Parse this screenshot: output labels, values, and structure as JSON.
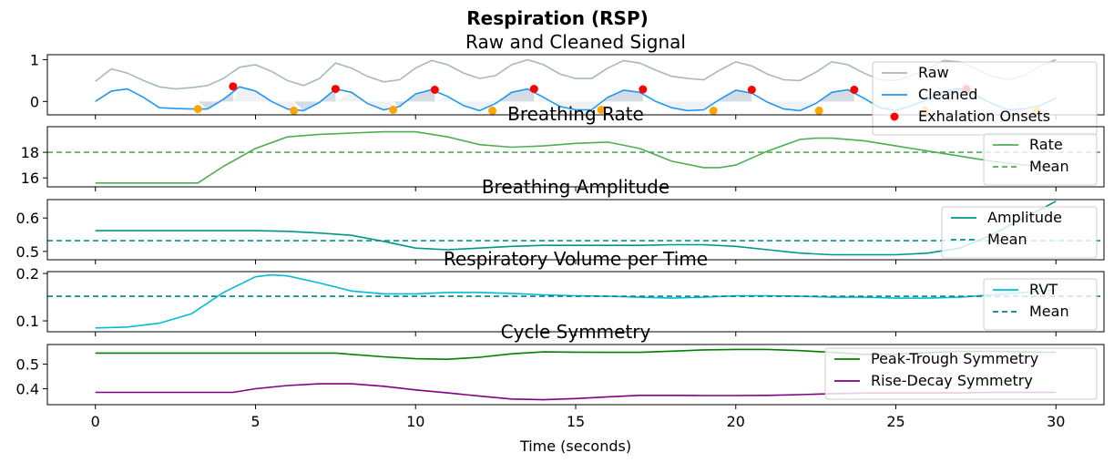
{
  "chart_data": {
    "type": "line",
    "title": "Respiration (RSP)",
    "xlabel": "Time (seconds)",
    "xlim": [
      -1.5,
      31.5
    ],
    "xticks": [
      0,
      5,
      10,
      15,
      20,
      25,
      30
    ],
    "panels": [
      {
        "id": "signal",
        "title": "Raw and Cleaned Signal",
        "ylim": [
          -0.32,
          1.12
        ],
        "yticks": [
          0,
          1
        ],
        "series": [
          {
            "name": "Raw",
            "color": "#a6b8c2",
            "x": [
              0,
              0.5,
              1,
              1.5,
              2,
              2.5,
              3,
              3.5,
              4,
              4.5,
              5,
              5.5,
              6,
              6.5,
              7,
              7.5,
              8,
              8.5,
              9,
              9.5,
              10,
              10.5,
              11,
              11.5,
              12,
              12.5,
              13,
              13.5,
              14,
              14.5,
              15,
              15.5,
              16,
              16.5,
              17,
              17.5,
              18,
              18.5,
              19,
              19.5,
              20,
              20.5,
              21,
              21.5,
              22,
              22.5,
              23,
              23.5,
              24,
              24.5,
              25,
              25.5,
              26,
              26.5,
              27,
              27.5,
              28,
              28.5,
              29,
              29.5,
              30
            ],
            "y": [
              0.48,
              0.78,
              0.68,
              0.5,
              0.35,
              0.3,
              0.33,
              0.38,
              0.55,
              0.82,
              0.88,
              0.72,
              0.5,
              0.38,
              0.55,
              0.92,
              0.8,
              0.6,
              0.47,
              0.52,
              0.8,
              0.98,
              0.88,
              0.68,
              0.55,
              0.62,
              0.88,
              1.0,
              0.88,
              0.66,
              0.55,
              0.55,
              0.8,
              0.98,
              0.92,
              0.75,
              0.6,
              0.55,
              0.52,
              0.75,
              0.95,
              0.85,
              0.65,
              0.52,
              0.5,
              0.7,
              0.95,
              0.88,
              0.68,
              0.52,
              0.5,
              0.62,
              0.78,
              0.98,
              0.95,
              0.78,
              0.6,
              0.52,
              0.62,
              0.85,
              1.0
            ]
          },
          {
            "name": "Cleaned",
            "color": "#2196f3",
            "x": [
              0,
              0.5,
              1,
              1.5,
              2,
              2.5,
              3,
              3.5,
              4,
              4.5,
              5,
              5.5,
              6,
              6.5,
              7,
              7.5,
              8,
              8.5,
              9,
              9.5,
              10,
              10.5,
              11,
              11.5,
              12,
              12.5,
              13,
              13.5,
              14,
              14.5,
              15,
              15.5,
              16,
              16.5,
              17,
              17.5,
              18,
              18.5,
              19,
              19.5,
              20,
              20.5,
              21,
              21.5,
              22,
              22.5,
              23,
              23.5,
              24,
              24.5,
              25,
              25.5,
              26,
              26.5,
              27,
              27.5,
              28,
              28.5,
              29,
              29.5,
              30
            ],
            "y": [
              0.0,
              0.25,
              0.3,
              0.1,
              -0.15,
              -0.17,
              -0.18,
              -0.18,
              0.05,
              0.35,
              0.25,
              0.0,
              -0.18,
              -0.22,
              -0.02,
              0.3,
              0.22,
              -0.05,
              -0.2,
              -0.12,
              0.18,
              0.28,
              0.12,
              -0.1,
              -0.22,
              -0.05,
              0.22,
              0.3,
              0.1,
              -0.12,
              -0.2,
              -0.2,
              0.1,
              0.27,
              0.22,
              0.0,
              -0.15,
              -0.22,
              -0.2,
              0.05,
              0.27,
              0.2,
              -0.02,
              -0.18,
              -0.22,
              -0.05,
              0.22,
              0.28,
              0.08,
              -0.15,
              -0.22,
              -0.1,
              0.05,
              0.25,
              0.3,
              0.15,
              -0.05,
              -0.2,
              -0.18,
              -0.1,
              0.08
            ]
          }
        ],
        "peaks": {
          "x": [
            4.3,
            7.5,
            10.6,
            13.7,
            17.1,
            20.5,
            23.7,
            27.2
          ],
          "y": [
            0.36,
            0.3,
            0.28,
            0.3,
            0.29,
            0.28,
            0.28,
            0.3
          ],
          "color": "#ff0000"
        },
        "troughs": {
          "x": [
            3.2,
            6.2,
            9.3,
            12.4,
            15.8,
            19.3,
            22.6,
            25.9,
            29.4
          ],
          "y": [
            -0.18,
            -0.22,
            -0.2,
            -0.22,
            -0.2,
            -0.22,
            -0.22,
            -0.22,
            -0.21
          ],
          "color": "#ffa500"
        },
        "legend": {
          "position": "upper right",
          "entries": [
            "Raw",
            "Cleaned",
            "Exhalation Onsets"
          ]
        }
      },
      {
        "id": "rate",
        "title": "Breathing Rate",
        "ylim": [
          15.3,
          20.0
        ],
        "yticks": [
          16,
          18
        ],
        "series": [
          {
            "name": "Rate",
            "color": "#4caf50",
            "x": [
              0,
              1,
              2,
              3,
              3.2,
              4,
              5,
              6,
              7,
              8,
              9,
              10,
              11,
              12,
              13,
              14,
              15,
              16,
              17,
              18,
              19,
              19.5,
              20,
              21,
              22,
              22.5,
              23,
              24,
              25,
              26,
              27,
              28,
              29,
              30
            ],
            "y": [
              15.6,
              15.6,
              15.6,
              15.6,
              15.6,
              16.9,
              18.3,
              19.2,
              19.4,
              19.5,
              19.6,
              19.6,
              19.2,
              18.6,
              18.4,
              18.5,
              18.7,
              18.8,
              18.3,
              17.3,
              16.8,
              16.8,
              17.0,
              18.1,
              19.0,
              19.1,
              19.1,
              18.9,
              18.5,
              18.1,
              17.7,
              17.3,
              17.0,
              16.8
            ]
          },
          {
            "name": "Mean",
            "color": "#4caf50",
            "dashed": true,
            "value": 18.0
          }
        ],
        "legend": {
          "position": "upper right",
          "entries": [
            "Rate",
            "Mean"
          ]
        }
      },
      {
        "id": "amplitude",
        "title": "Breathing Amplitude",
        "ylim": [
          0.475,
          0.655
        ],
        "yticks": [
          0.5,
          0.6
        ],
        "series": [
          {
            "name": "Amplitude",
            "color": "#009688",
            "x": [
              0,
              1,
              2,
              3,
              4,
              5,
              6,
              7,
              8,
              9,
              10,
              11,
              12,
              13,
              14,
              15,
              16,
              17,
              18,
              19,
              20,
              21,
              22,
              23,
              24,
              25,
              26,
              27,
              28,
              29,
              30
            ],
            "y": [
              0.562,
              0.562,
              0.562,
              0.562,
              0.562,
              0.562,
              0.56,
              0.555,
              0.548,
              0.53,
              0.51,
              0.505,
              0.51,
              0.515,
              0.518,
              0.518,
              0.518,
              0.518,
              0.52,
              0.52,
              0.515,
              0.505,
              0.495,
              0.49,
              0.49,
              0.49,
              0.495,
              0.51,
              0.55,
              0.6,
              0.65
            ]
          },
          {
            "name": "Mean",
            "color": "#009688",
            "dashed": true,
            "value": 0.532
          }
        ],
        "legend": {
          "position": "upper right",
          "entries": [
            "Amplitude",
            "Mean"
          ]
        }
      },
      {
        "id": "rvt",
        "title": "Respiratory Volume per Time",
        "ylim": [
          0.077,
          0.204
        ],
        "yticks": [
          0.1,
          0.2
        ],
        "series": [
          {
            "name": "RVT",
            "color": "#00bcd4",
            "x": [
              0,
              1,
              2,
              3,
              4,
              5,
              5.5,
              6,
              7,
              8,
              9,
              10,
              11,
              12,
              13,
              14,
              15,
              16,
              17,
              18,
              19,
              20,
              21,
              22,
              23,
              24,
              25,
              26,
              27,
              28,
              29,
              30
            ],
            "y": [
              0.085,
              0.087,
              0.095,
              0.115,
              0.16,
              0.193,
              0.197,
              0.195,
              0.18,
              0.163,
              0.157,
              0.157,
              0.16,
              0.16,
              0.158,
              0.155,
              0.153,
              0.152,
              0.15,
              0.148,
              0.15,
              0.153,
              0.153,
              0.152,
              0.15,
              0.15,
              0.148,
              0.148,
              0.15,
              0.155,
              0.16,
              0.165
            ]
          },
          {
            "name": "Mean",
            "color": "#00838f",
            "dashed": true,
            "value": 0.152
          }
        ],
        "legend": {
          "position": "upper right",
          "entries": [
            "RVT",
            "Mean"
          ]
        }
      },
      {
        "id": "symmetry",
        "title": "Cycle Symmetry",
        "ylim": [
          0.335,
          0.58
        ],
        "yticks": [
          0.4,
          0.5
        ],
        "series": [
          {
            "name": "Peak-Trough Symmetry",
            "color": "#008000",
            "x": [
              0,
              1,
              2,
              3,
              4,
              5,
              6,
              7,
              7.5,
              8,
              9,
              10,
              11,
              12,
              13,
              14,
              15,
              16,
              17,
              18,
              19,
              20,
              21,
              22,
              23,
              24,
              25,
              26,
              27,
              28,
              29,
              30
            ],
            "y": [
              0.545,
              0.545,
              0.545,
              0.545,
              0.545,
              0.545,
              0.545,
              0.545,
              0.545,
              0.54,
              0.53,
              0.522,
              0.52,
              0.528,
              0.542,
              0.55,
              0.549,
              0.548,
              0.548,
              0.553,
              0.558,
              0.56,
              0.56,
              0.555,
              0.548,
              0.54,
              0.54,
              0.547,
              0.552,
              0.552,
              0.55,
              0.548
            ]
          },
          {
            "name": "Rise-Decay Symmetry",
            "color": "#800080",
            "x": [
              0,
              1,
              2,
              3,
              4,
              4.3,
              5,
              6,
              7,
              8,
              9,
              10,
              11,
              12,
              13,
              14,
              15,
              16,
              17,
              18,
              19,
              20,
              21,
              22,
              23,
              24,
              25,
              26,
              27,
              28,
              29,
              30
            ],
            "y": [
              0.385,
              0.385,
              0.385,
              0.385,
              0.385,
              0.385,
              0.4,
              0.413,
              0.42,
              0.42,
              0.41,
              0.395,
              0.383,
              0.37,
              0.358,
              0.355,
              0.36,
              0.367,
              0.373,
              0.373,
              0.372,
              0.372,
              0.373,
              0.376,
              0.38,
              0.382,
              0.383,
              0.383,
              0.383,
              0.385,
              0.385,
              0.385
            ]
          }
        ],
        "legend": {
          "position": "lower right",
          "entries": [
            "Peak-Trough Symmetry",
            "Rise-Decay Symmetry"
          ]
        }
      }
    ]
  }
}
